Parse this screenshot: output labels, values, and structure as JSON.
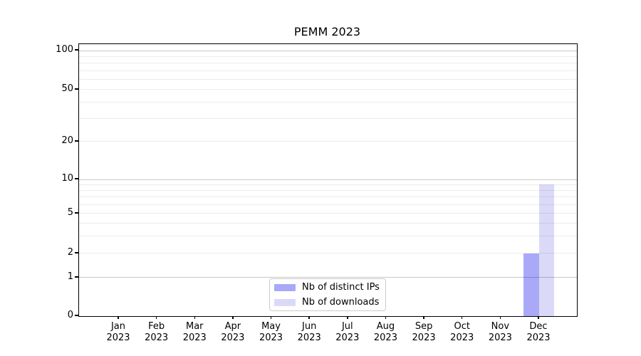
{
  "chart_data": {
    "type": "bar",
    "title": "PEMM 2023",
    "categories": [
      "Jan",
      "Feb",
      "Mar",
      "Apr",
      "May",
      "Jun",
      "Jul",
      "Aug",
      "Sep",
      "Oct",
      "Nov",
      "Dec"
    ],
    "x_year": "2023",
    "series": [
      {
        "name": "Nb of distinct IPs",
        "color": "#a9a9f8",
        "values": [
          0,
          0,
          0,
          0,
          0,
          0,
          0,
          0,
          0,
          0,
          0,
          2
        ]
      },
      {
        "name": "Nb of downloads",
        "color": "#dadaf8",
        "values": [
          0,
          0,
          0,
          0,
          0,
          0,
          0,
          0,
          0,
          0,
          0,
          9
        ]
      }
    ],
    "yticks": [
      0,
      1,
      2,
      5,
      10,
      20,
      50,
      100
    ],
    "yticks_minor": [
      3,
      4,
      6,
      7,
      8,
      9,
      30,
      40,
      60,
      70,
      80,
      90
    ],
    "ylim": [
      0,
      105
    ],
    "yscale": "symlog",
    "grid": true,
    "legend_position": "lower center inside",
    "major_grid_color": "#c7c7c7",
    "minor_grid_color": "#ededed"
  }
}
